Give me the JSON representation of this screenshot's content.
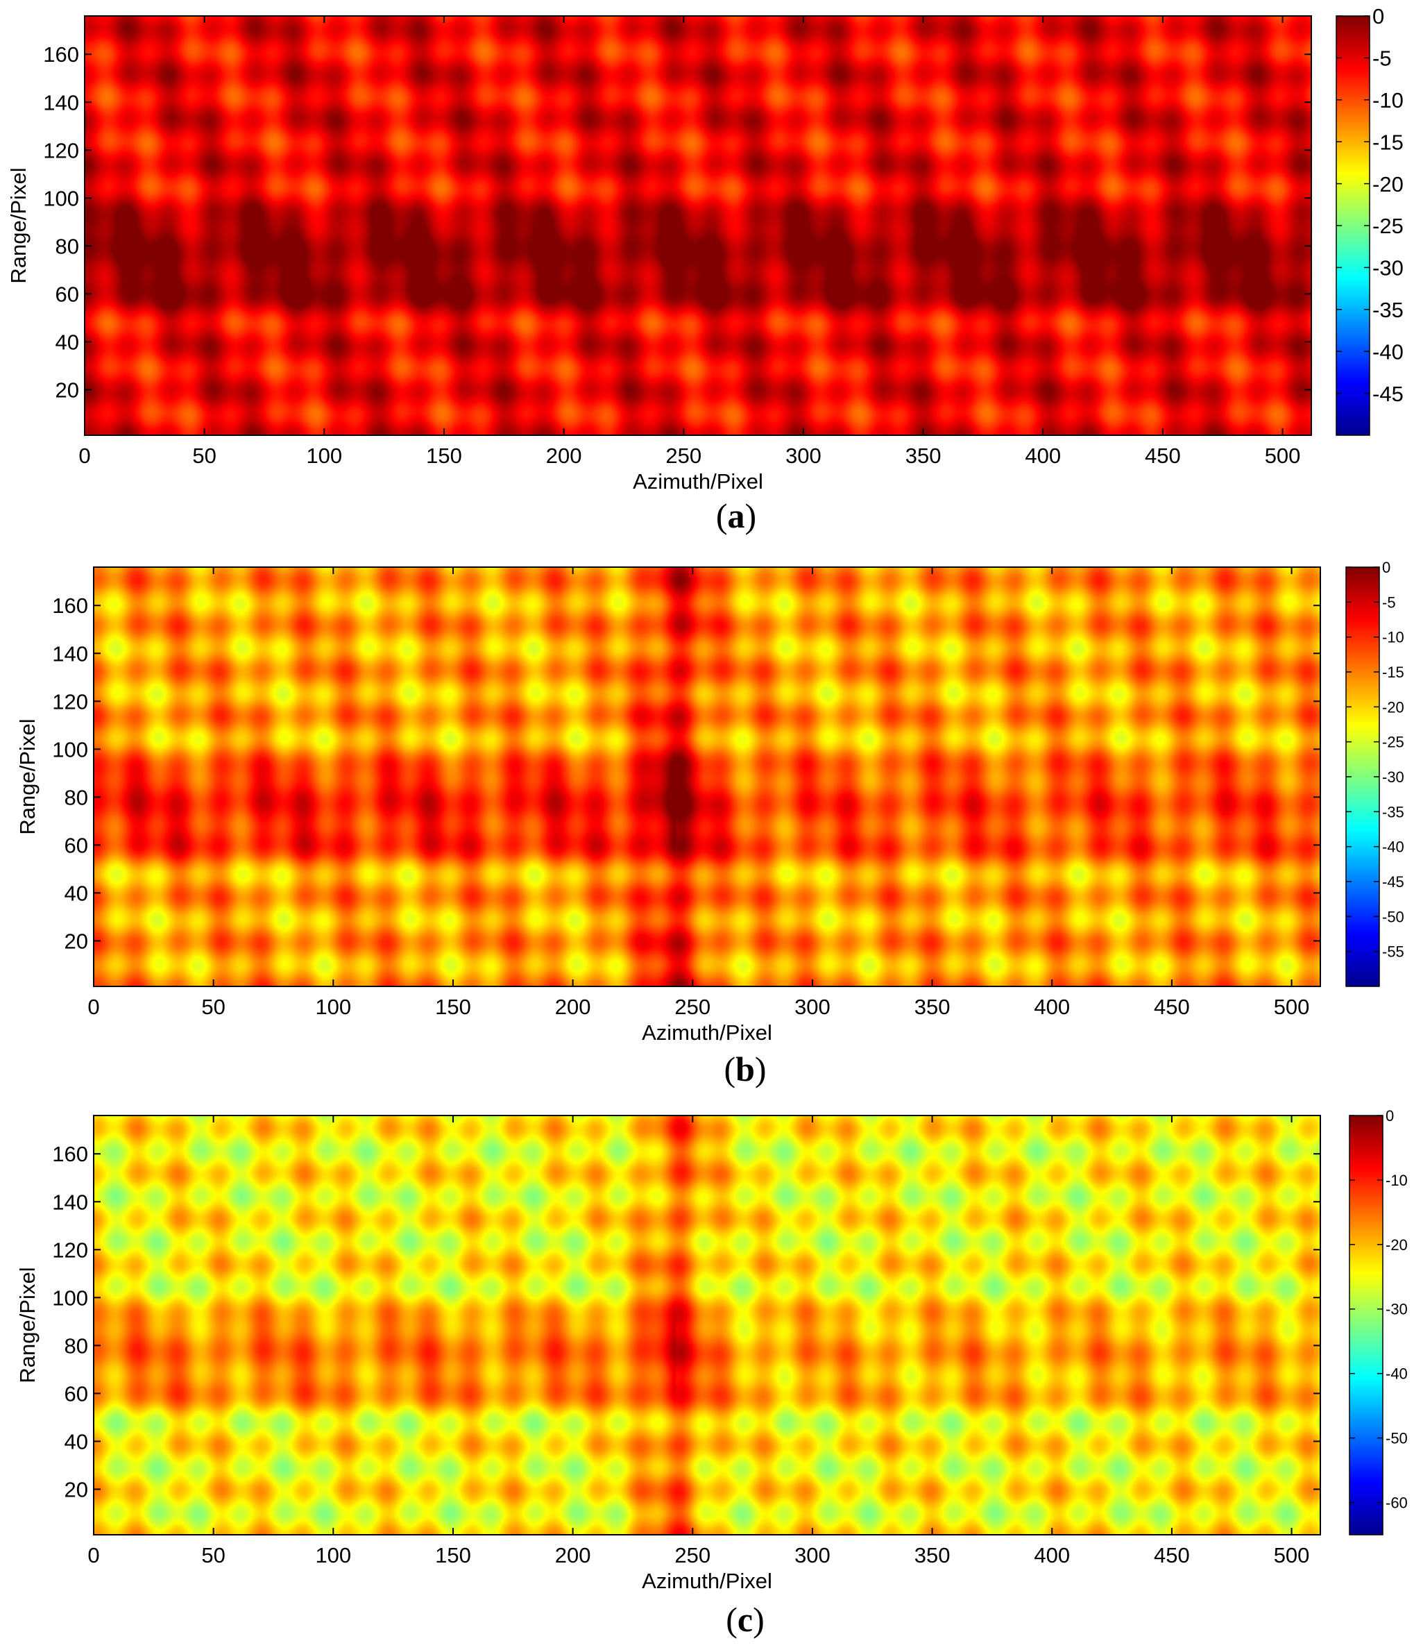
{
  "chart_data": [
    {
      "type": "heatmap",
      "caption_letter": "a",
      "xlabel": "Azimuth/Pixel",
      "ylabel": "Range/Pixel",
      "xlim": [
        0,
        512
      ],
      "ylim": [
        1,
        176
      ],
      "xticks": [
        "0",
        "50",
        "100",
        "150",
        "200",
        "250",
        "300",
        "350",
        "400",
        "450",
        "500"
      ],
      "yticks": [
        "20",
        "40",
        "60",
        "80",
        "100",
        "120",
        "140",
        "160"
      ],
      "colorbar": {
        "min": -50,
        "max": 0,
        "ticks": [
          "0",
          "-5",
          "-10",
          "-15",
          "-20",
          "-25",
          "-30",
          "-35",
          "-40",
          "-45"
        ]
      },
      "colormap": "jet",
      "grid": false,
      "strong_rows": [
        65,
        84
      ],
      "strong_cols": []
    },
    {
      "type": "heatmap",
      "caption_letter": "b",
      "xlabel": "Azimuth/Pixel",
      "ylabel": "Range/Pixel",
      "xlim": [
        0,
        512
      ],
      "ylim": [
        1,
        176
      ],
      "xticks": [
        "0",
        "50",
        "100",
        "150",
        "200",
        "250",
        "300",
        "350",
        "400",
        "450",
        "500"
      ],
      "yticks": [
        "20",
        "40",
        "60",
        "80",
        "100",
        "120",
        "140",
        "160"
      ],
      "colorbar": {
        "min": -60,
        "max": 0,
        "ticks": [
          "0",
          "-5",
          "-10",
          "-15",
          "-20",
          "-25",
          "-30",
          "-35",
          "-40",
          "-45",
          "-50",
          "-55"
        ]
      },
      "colormap": "jet",
      "grid": false,
      "strong_rows": [
        65,
        84
      ],
      "strong_cols": [
        243
      ]
    },
    {
      "type": "heatmap",
      "caption_letter": "c",
      "xlabel": "Azimuth/Pixel",
      "ylabel": "Range/Pixel",
      "xlim": [
        0,
        512
      ],
      "ylim": [
        1,
        176
      ],
      "xticks": [
        "0",
        "50",
        "100",
        "150",
        "200",
        "250",
        "300",
        "350",
        "400",
        "450",
        "500"
      ],
      "yticks": [
        "20",
        "40",
        "60",
        "80",
        "100",
        "120",
        "140",
        "160"
      ],
      "colorbar": {
        "min": -65,
        "max": 0,
        "ticks": [
          "0",
          "-10",
          "-20",
          "-30",
          "-40",
          "-50",
          "-60"
        ]
      },
      "colormap": "jet",
      "grid": false,
      "strong_rows": [
        65,
        84
      ],
      "strong_cols": [
        243
      ]
    }
  ]
}
